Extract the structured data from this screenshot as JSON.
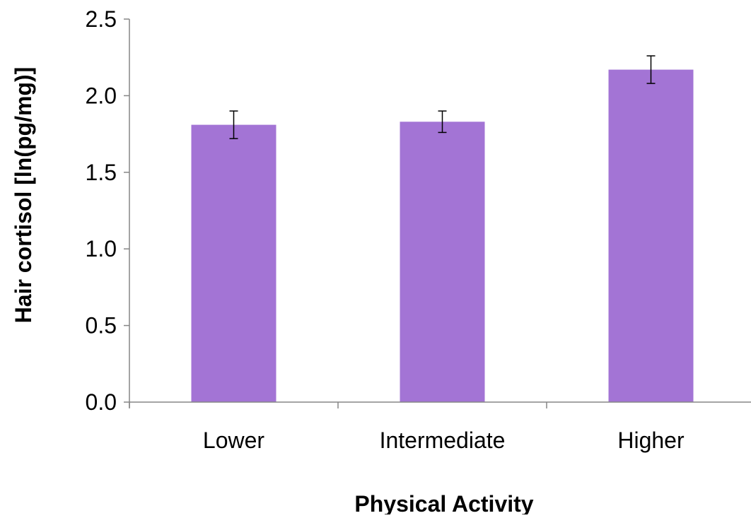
{
  "chart_data": {
    "type": "bar",
    "categories": [
      "Lower",
      "Intermediate",
      "Higher"
    ],
    "values": [
      1.81,
      1.83,
      2.17
    ],
    "error": [
      0.09,
      0.07,
      0.09
    ],
    "xlabel": "Physical Activity",
    "ylabel": "Hair cortisol [ln(pg/mg)]",
    "ylim": [
      0,
      2.5
    ],
    "yticks": [
      "0.0",
      "0.5",
      "1.0",
      "1.5",
      "2.0",
      "2.5"
    ],
    "grid": false,
    "legend": "none",
    "bar_color": "#a374d5",
    "axis_color": "#868686"
  }
}
